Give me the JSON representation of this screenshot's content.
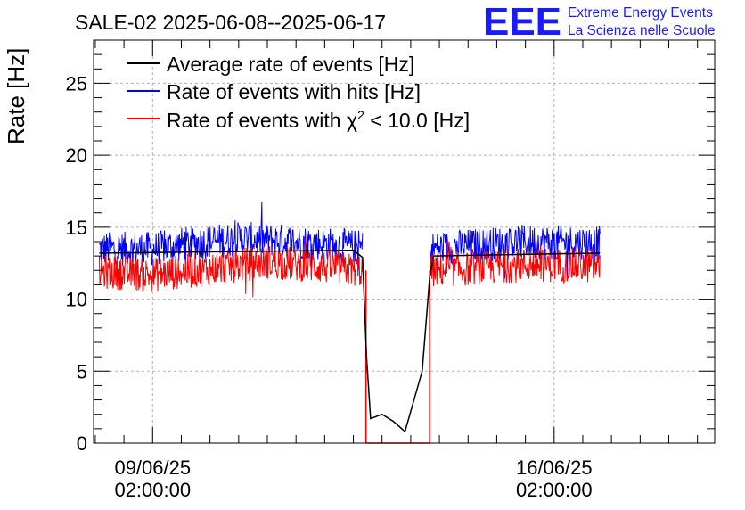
{
  "chart_data": {
    "type": "line",
    "title": "SALE-02 2025-06-08--2025-06-17",
    "ylabel": "Rate [Hz]",
    "xlabel": "",
    "ylim": [
      0,
      28
    ],
    "y_ticks": [
      0,
      5,
      10,
      15,
      20,
      25
    ],
    "x_ticks": [
      {
        "date": "09/06/25",
        "time": "02:00:00",
        "day": 1
      },
      {
        "date": "16/06/25",
        "time": "02:00:00",
        "day": 8
      }
    ],
    "xlim_days": [
      -0.03,
      10.8
    ],
    "grid": true,
    "legend_position": "top-left",
    "brand": {
      "logo": "EEE",
      "line1": "Extreme Energy Events",
      "line2": "La Scienza nelle Scuole"
    },
    "series": [
      {
        "name": "Average rate of events [Hz]",
        "color": "#000000",
        "points": [
          [
            0.07,
            13.2
          ],
          [
            4.5,
            13.4
          ],
          [
            4.66,
            12.9
          ],
          [
            4.73,
            6.0
          ],
          [
            4.8,
            1.7
          ],
          [
            5.0,
            2.0
          ],
          [
            5.2,
            1.5
          ],
          [
            5.4,
            0.8
          ],
          [
            5.7,
            5.0
          ],
          [
            5.83,
            11.5
          ],
          [
            5.9,
            13.0
          ],
          [
            8.8,
            13.2
          ]
        ]
      },
      {
        "name": "Rate of events with hits [Hz]",
        "color": "#0000ff",
        "segments": [
          {
            "start": 0.07,
            "end": 4.66,
            "level": [
              [
                0.07,
                13.5
              ],
              [
                1.0,
                13.5
              ],
              [
                1.5,
                13.8
              ],
              [
                2.5,
                14.2
              ],
              [
                3.5,
                14.0
              ],
              [
                4.66,
                13.6
              ]
            ]
          },
          {
            "start": 5.84,
            "end": 8.8,
            "level": [
              [
                5.84,
                13.5
              ],
              [
                6.5,
                13.7
              ],
              [
                7.5,
                14.0
              ],
              [
                8.8,
                13.9
              ]
            ]
          }
        ]
      },
      {
        "name": "Rate of events with χ² < 10.0 [Hz]",
        "color": "#ff0000",
        "segments": [
          {
            "start": 0.07,
            "end": 4.66,
            "level": [
              [
                0.07,
                11.9
              ],
              [
                1.0,
                11.7
              ],
              [
                2.0,
                12.1
              ],
              [
                3.0,
                12.6
              ],
              [
                4.66,
                12.0
              ]
            ]
          },
          {
            "start": 4.72,
            "end": 5.83,
            "level": [
              [
                4.72,
                0
              ],
              [
                5.83,
                0
              ]
            ]
          },
          {
            "start": 5.84,
            "end": 8.8,
            "level": [
              [
                5.84,
                12.0
              ],
              [
                6.5,
                12.1
              ],
              [
                7.5,
                12.4
              ],
              [
                8.8,
                12.3
              ]
            ]
          }
        ]
      }
    ],
    "legend": [
      {
        "text": "Average rate of events [Hz]",
        "color": "#000000"
      },
      {
        "text": "Rate of events with hits [Hz]",
        "color": "#0000ff"
      },
      {
        "text_main": "Rate of events with χ",
        "sup": "2",
        "text_tail": " < 10.0 [Hz]",
        "color": "#ff0000"
      }
    ]
  }
}
